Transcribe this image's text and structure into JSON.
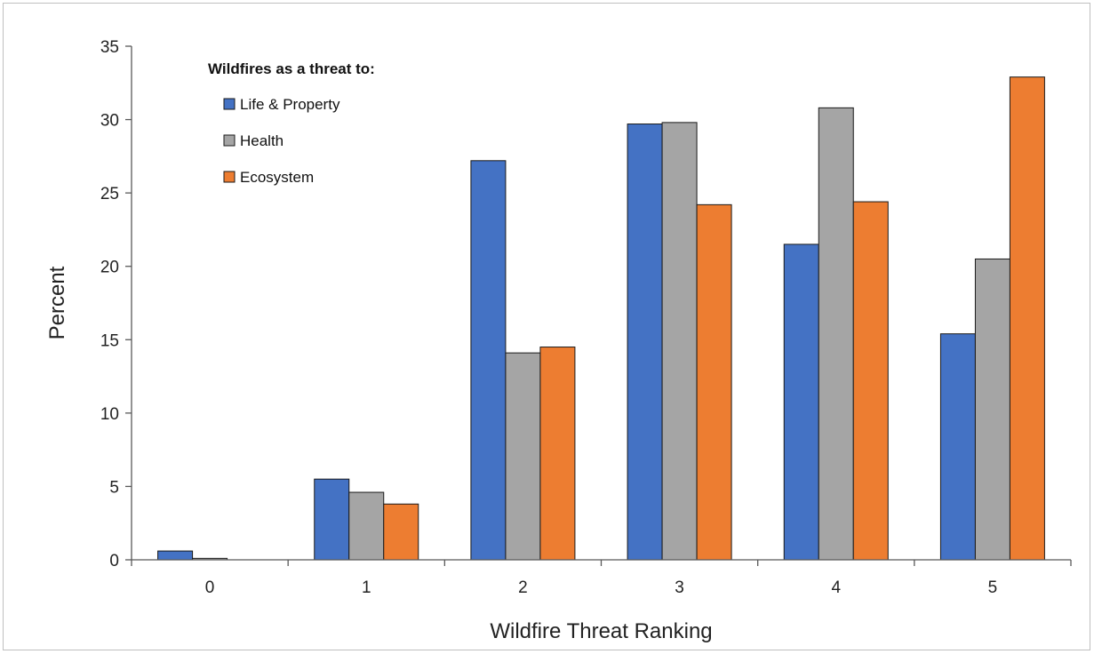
{
  "chart_data": {
    "type": "bar",
    "title": "",
    "xlabel": "Wildfire Threat Ranking",
    "ylabel": "Percent",
    "categories": [
      "0",
      "1",
      "2",
      "3",
      "4",
      "5"
    ],
    "ylim": [
      0,
      35
    ],
    "yticks": [
      "0",
      "5",
      "10",
      "15",
      "20",
      "25",
      "30",
      "35"
    ],
    "grid": false,
    "legend": {
      "title": "Wildfires as a threat to:",
      "placement": "top-left"
    },
    "series": [
      {
        "name": "Life & Property",
        "color": "#4472c4",
        "values": [
          0.6,
          5.5,
          27.2,
          29.7,
          21.5,
          15.4
        ]
      },
      {
        "name": "Health",
        "color": "#a5a5a5",
        "values": [
          0.1,
          4.6,
          14.1,
          29.8,
          30.8,
          20.5
        ]
      },
      {
        "name": "Ecosystem",
        "color": "#ed7d31",
        "values": [
          0.0,
          3.8,
          14.5,
          24.2,
          24.4,
          32.9
        ]
      }
    ]
  }
}
